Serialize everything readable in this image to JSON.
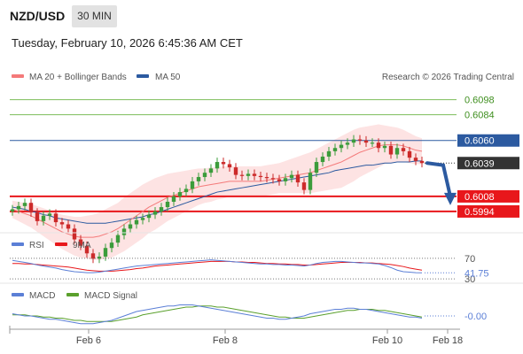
{
  "header": {
    "symbol": "NZD/USD",
    "interval": "30 MIN",
    "datetime": "Tuesday, February 10, 2026 6:45:36 AM CET",
    "credit": "Research © 2026 Trading Central"
  },
  "colors": {
    "ma20": "#f47a7a",
    "ma50": "#2c5aa0",
    "bollinger_fill": "#fde3e3",
    "resistance": "#7dbd5a",
    "pivot": "#2c5aa0",
    "support": "#e8171b",
    "candle_up": "#3b9c3b",
    "candle_down": "#cc2a2a",
    "rsi": "#5b7fd6",
    "rsi_ma": "#e8171b",
    "macd": "#5b7fd6",
    "macd_signal": "#5aa02c",
    "current_price_bg": "#333333"
  },
  "legend": {
    "ma20_label": "MA 20 + Bollinger Bands",
    "ma50_label": "MA 50",
    "rsi_label": "RSI",
    "rsi_ma_label": "9MA",
    "macd_label": "MACD",
    "macd_signal_label": "MACD Signal"
  },
  "chart_data": [
    {
      "type": "candlestick",
      "title": "NZD/USD",
      "interval": "30 MIN",
      "x_ticks": [
        "Feb 6",
        "Feb 8",
        "Feb 10",
        "Feb 18"
      ],
      "ylim": [
        0.5975,
        0.611
      ],
      "levels": [
        {
          "label": "0.6098",
          "value": 0.6098,
          "kind": "resistance"
        },
        {
          "label": "0.6084",
          "value": 0.6084,
          "kind": "resistance"
        },
        {
          "label": "0.6060",
          "value": 0.606,
          "kind": "pivot"
        },
        {
          "label": "0.6008",
          "value": 0.6008,
          "kind": "support"
        },
        {
          "label": "0.5994",
          "value": 0.5994,
          "kind": "support"
        }
      ],
      "current_price": {
        "label": "0.6039",
        "value": 0.6039
      },
      "close": [
        0.5996,
        0.5999,
        0.6002,
        0.5993,
        0.5985,
        0.599,
        0.5992,
        0.5984,
        0.5982,
        0.5978,
        0.5968,
        0.5962,
        0.5955,
        0.595,
        0.5952,
        0.596,
        0.5965,
        0.5972,
        0.5978,
        0.5982,
        0.5986,
        0.5988,
        0.5991,
        0.5994,
        0.5998,
        0.6003,
        0.6008,
        0.6012,
        0.6015,
        0.6022,
        0.6026,
        0.603,
        0.6034,
        0.604,
        0.6038,
        0.6035,
        0.6028,
        0.6027,
        0.6029,
        0.6027,
        0.6026,
        0.6025,
        0.6024,
        0.6022,
        0.6025,
        0.6028,
        0.6021,
        0.6014,
        0.603,
        0.604,
        0.6045,
        0.605,
        0.6053,
        0.6056,
        0.6058,
        0.6061,
        0.606,
        0.6058,
        0.6058,
        0.6053,
        0.6055,
        0.6047,
        0.6053,
        0.605,
        0.6044,
        0.6041,
        0.6039
      ],
      "ma20": [
        0.5996,
        0.5994,
        0.5992,
        0.599,
        0.5987,
        0.5984,
        0.5981,
        0.5978,
        0.5975,
        0.5973,
        0.5971,
        0.597,
        0.597,
        0.597,
        0.5971,
        0.5973,
        0.5975,
        0.5978,
        0.5982,
        0.5986,
        0.599,
        0.5994,
        0.5998,
        0.6001,
        0.6004,
        0.6007,
        0.6009,
        0.6011,
        0.6013,
        0.6015,
        0.6017,
        0.6018,
        0.6019,
        0.602,
        0.6021,
        0.6022,
        0.6022,
        0.6022,
        0.6022,
        0.6022,
        0.6022,
        0.6023,
        0.6024,
        0.6025,
        0.6026,
        0.6027,
        0.6028,
        0.6029,
        0.603,
        0.6032,
        0.6034,
        0.6036,
        0.6038,
        0.604,
        0.6043,
        0.6046,
        0.6049,
        0.6051,
        0.6053,
        0.6055,
        0.6056,
        0.6056,
        0.6056,
        0.6055,
        0.6053,
        0.6051,
        0.605
      ],
      "ma50": [
        0.5998,
        0.5997,
        0.5996,
        0.5994,
        0.5993,
        0.5991,
        0.599,
        0.5988,
        0.5987,
        0.5986,
        0.5985,
        0.5984,
        0.5983,
        0.5983,
        0.5983,
        0.5983,
        0.5984,
        0.5985,
        0.5986,
        0.5987,
        0.5988,
        0.5989,
        0.5991,
        0.5992,
        0.5994,
        0.5996,
        0.5998,
        0.6,
        0.6002,
        0.6004,
        0.6006,
        0.6008,
        0.601,
        0.6012,
        0.6013,
        0.6014,
        0.6015,
        0.6016,
        0.6017,
        0.6018,
        0.6019,
        0.602,
        0.6021,
        0.6022,
        0.6023,
        0.6024,
        0.6025,
        0.6026,
        0.6027,
        0.6028,
        0.6029,
        0.603,
        0.6032,
        0.6033,
        0.6034,
        0.6035,
        0.6036,
        0.6037,
        0.6037,
        0.6038,
        0.6039,
        0.6039,
        0.604,
        0.604,
        0.604,
        0.6041,
        0.6041
      ],
      "bollinger_width": [
        0.0008,
        0.0009,
        0.001,
        0.0011,
        0.0012,
        0.0013,
        0.0014,
        0.0015,
        0.0016,
        0.0017,
        0.0018,
        0.0019,
        0.002,
        0.0021,
        0.0022,
        0.0023,
        0.0024,
        0.0024,
        0.0025,
        0.0025,
        0.0025,
        0.0025,
        0.0024,
        0.0024,
        0.0023,
        0.0022,
        0.0021,
        0.002,
        0.0019,
        0.0018,
        0.0017,
        0.0016,
        0.0016,
        0.0015,
        0.0015,
        0.0014,
        0.0014,
        0.0014,
        0.0014,
        0.0014,
        0.0014,
        0.0014,
        0.0014,
        0.0014,
        0.0015,
        0.0016,
        0.0017,
        0.0018,
        0.0019,
        0.002,
        0.0021,
        0.0022,
        0.0023,
        0.0024,
        0.0024,
        0.0024,
        0.0023,
        0.0022,
        0.0021,
        0.002,
        0.0018,
        0.0017,
        0.0016,
        0.0015,
        0.0014,
        0.0013,
        0.0012
      ],
      "forecast": [
        0.6039,
        0.6037,
        0.6008
      ]
    },
    {
      "type": "line",
      "title": "RSI",
      "levels": [
        {
          "label": "70",
          "value": 70
        },
        {
          "label": "30",
          "value": 30
        }
      ],
      "current_value": {
        "label": "41.75",
        "value": 41.75
      },
      "ylim": [
        25,
        75
      ],
      "rsi": [
        66,
        64,
        62,
        60,
        57,
        55,
        53,
        51,
        48,
        46,
        44,
        43,
        42,
        42,
        43,
        45,
        47,
        49,
        51,
        53,
        55,
        56,
        57,
        58,
        59,
        60,
        61,
        62,
        63,
        64,
        65,
        66,
        67,
        66,
        65,
        64,
        63,
        62,
        61,
        60,
        59,
        59,
        58,
        58,
        57,
        57,
        56,
        55,
        57,
        60,
        62,
        63,
        64,
        64,
        63,
        62,
        61,
        61,
        60,
        59,
        56,
        52,
        47,
        44,
        43,
        42,
        41.75
      ],
      "rsi_ma": [
        60,
        60,
        59,
        59,
        58,
        57,
        56,
        55,
        54,
        53,
        51,
        49,
        47,
        46,
        45,
        45,
        45,
        46,
        47,
        48,
        50,
        51,
        53,
        55,
        56,
        57,
        58,
        59,
        60,
        61,
        62,
        63,
        64,
        64,
        64,
        64,
        63,
        63,
        62,
        62,
        61,
        60,
        60,
        59,
        59,
        58,
        58,
        57,
        57,
        58,
        59,
        60,
        61,
        62,
        62,
        62,
        62,
        61,
        61,
        60,
        59,
        58,
        56,
        54,
        51,
        49,
        47
      ]
    },
    {
      "type": "line",
      "title": "MACD",
      "current_value": {
        "label": "-0.00",
        "value": 0.0
      },
      "ylim": [
        -0.0012,
        0.0012
      ],
      "macd": [
        0.0002,
        0.0001,
        0.0,
        0.0,
        -0.0001,
        -0.0002,
        -0.0003,
        -0.0003,
        -0.0004,
        -0.0005,
        -0.0006,
        -0.0007,
        -0.0007,
        -0.0007,
        -0.0006,
        -0.0005,
        -0.0004,
        -0.0002,
        0.0,
        0.0002,
        0.0004,
        0.0005,
        0.0006,
        0.0007,
        0.0008,
        0.0009,
        0.0009,
        0.001,
        0.001,
        0.001,
        0.0009,
        0.0008,
        0.0007,
        0.0006,
        0.0005,
        0.0004,
        0.0003,
        0.0002,
        0.0001,
        0.0,
        -0.0001,
        -0.0002,
        -0.0002,
        -0.0003,
        -0.0003,
        -0.0002,
        -0.0001,
        0.0,
        0.0002,
        0.0003,
        0.0004,
        0.0005,
        0.0006,
        0.0006,
        0.0007,
        0.0007,
        0.0006,
        0.0006,
        0.0005,
        0.0004,
        0.0003,
        0.0002,
        0.0001,
        0.0,
        -0.0001,
        -0.0001,
        -0.0002
      ],
      "signal": [
        0.0001,
        0.0001,
        0.0001,
        0.0,
        0.0,
        -0.0001,
        -0.0001,
        -0.0002,
        -0.0002,
        -0.0003,
        -0.0004,
        -0.0004,
        -0.0005,
        -0.0005,
        -0.0005,
        -0.0005,
        -0.0005,
        -0.0004,
        -0.0003,
        -0.0002,
        -0.0001,
        0.0001,
        0.0002,
        0.0003,
        0.0004,
        0.0005,
        0.0006,
        0.0007,
        0.0008,
        0.0008,
        0.0009,
        0.0009,
        0.0009,
        0.0008,
        0.0008,
        0.0007,
        0.0006,
        0.0005,
        0.0004,
        0.0003,
        0.0002,
        0.0001,
        0.0,
        -0.0001,
        -0.0001,
        -0.0002,
        -0.0002,
        -0.0002,
        -0.0001,
        0.0,
        0.0001,
        0.0002,
        0.0003,
        0.0004,
        0.0005,
        0.0005,
        0.0006,
        0.0006,
        0.0006,
        0.0005,
        0.0005,
        0.0004,
        0.0003,
        0.0002,
        0.0001,
        0.0,
        -0.0001
      ]
    }
  ]
}
